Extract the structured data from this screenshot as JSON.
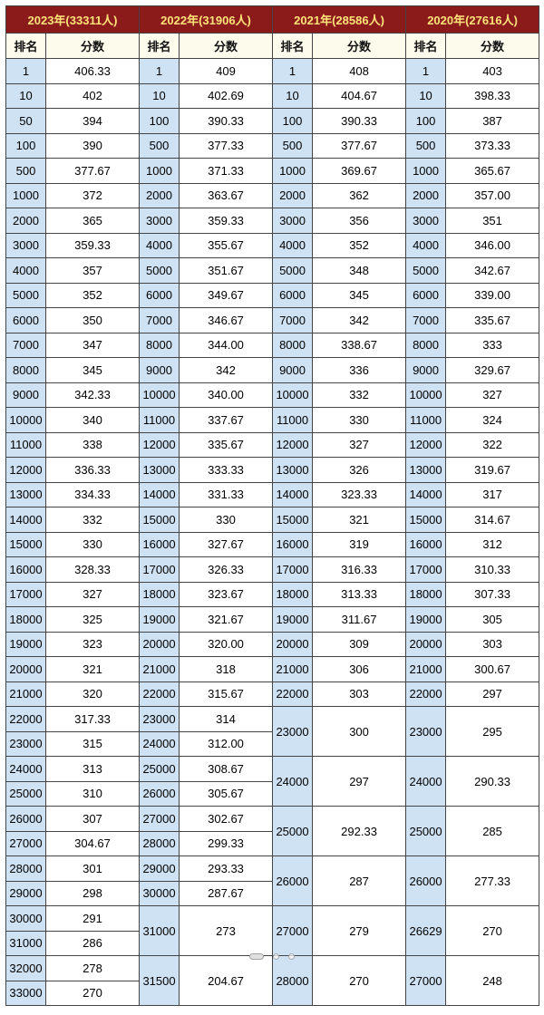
{
  "table": {
    "header_bg": "#8b1a1a",
    "header_fg": "#ffe37a",
    "subhead_bg": "#fdfbec",
    "rank_bg": "#cfe2f3",
    "score_bg": "#ffffff",
    "border_color": "#444444",
    "font_size_header": 13,
    "font_size_cell": 13,
    "labels": {
      "rank": "排名",
      "score": "分数"
    },
    "years": [
      {
        "title": "2023年(33311人)"
      },
      {
        "title": "2022年(31906人)"
      },
      {
        "title": "2021年(28586人)"
      },
      {
        "title": "2020年(27616人)"
      }
    ],
    "rows": [
      [
        {
          "r": "1",
          "s": "406.33"
        },
        {
          "r": "1",
          "s": "409"
        },
        {
          "r": "1",
          "s": "408"
        },
        {
          "r": "1",
          "s": "403"
        }
      ],
      [
        {
          "r": "10",
          "s": "402"
        },
        {
          "r": "10",
          "s": "402.69"
        },
        {
          "r": "10",
          "s": "404.67"
        },
        {
          "r": "10",
          "s": "398.33"
        }
      ],
      [
        {
          "r": "50",
          "s": "394"
        },
        {
          "r": "100",
          "s": "390.33"
        },
        {
          "r": "100",
          "s": "390.33"
        },
        {
          "r": "100",
          "s": "387"
        }
      ],
      [
        {
          "r": "100",
          "s": "390"
        },
        {
          "r": "500",
          "s": "377.33"
        },
        {
          "r": "500",
          "s": "377.67"
        },
        {
          "r": "500",
          "s": "373.33"
        }
      ],
      [
        {
          "r": "500",
          "s": "377.67"
        },
        {
          "r": "1000",
          "s": "371.33"
        },
        {
          "r": "1000",
          "s": "369.67"
        },
        {
          "r": "1000",
          "s": "365.67"
        }
      ],
      [
        {
          "r": "1000",
          "s": "372"
        },
        {
          "r": "2000",
          "s": "363.67"
        },
        {
          "r": "2000",
          "s": "362"
        },
        {
          "r": "2000",
          "s": "357.00"
        }
      ],
      [
        {
          "r": "2000",
          "s": "365"
        },
        {
          "r": "3000",
          "s": "359.33"
        },
        {
          "r": "3000",
          "s": "356"
        },
        {
          "r": "3000",
          "s": "351"
        }
      ],
      [
        {
          "r": "3000",
          "s": "359.33"
        },
        {
          "r": "4000",
          "s": "355.67"
        },
        {
          "r": "4000",
          "s": "352"
        },
        {
          "r": "4000",
          "s": "346.00"
        }
      ],
      [
        {
          "r": "4000",
          "s": "357"
        },
        {
          "r": "5000",
          "s": "351.67"
        },
        {
          "r": "5000",
          "s": "348"
        },
        {
          "r": "5000",
          "s": "342.67"
        }
      ],
      [
        {
          "r": "5000",
          "s": "352"
        },
        {
          "r": "6000",
          "s": "349.67"
        },
        {
          "r": "6000",
          "s": "345"
        },
        {
          "r": "6000",
          "s": "339.00"
        }
      ],
      [
        {
          "r": "6000",
          "s": "350"
        },
        {
          "r": "7000",
          "s": "346.67"
        },
        {
          "r": "7000",
          "s": "342"
        },
        {
          "r": "7000",
          "s": "335.67"
        }
      ],
      [
        {
          "r": "7000",
          "s": "347"
        },
        {
          "r": "8000",
          "s": "344.00"
        },
        {
          "r": "8000",
          "s": "338.67"
        },
        {
          "r": "8000",
          "s": "333"
        }
      ],
      [
        {
          "r": "8000",
          "s": "345"
        },
        {
          "r": "9000",
          "s": "342"
        },
        {
          "r": "9000",
          "s": "336"
        },
        {
          "r": "9000",
          "s": "329.67"
        }
      ],
      [
        {
          "r": "9000",
          "s": "342.33"
        },
        {
          "r": "10000",
          "s": "340.00"
        },
        {
          "r": "10000",
          "s": "332"
        },
        {
          "r": "10000",
          "s": "327"
        }
      ],
      [
        {
          "r": "10000",
          "s": "340"
        },
        {
          "r": "11000",
          "s": "337.67"
        },
        {
          "r": "11000",
          "s": "330"
        },
        {
          "r": "11000",
          "s": "324"
        }
      ],
      [
        {
          "r": "11000",
          "s": "338"
        },
        {
          "r": "12000",
          "s": "335.67"
        },
        {
          "r": "12000",
          "s": "327"
        },
        {
          "r": "12000",
          "s": "322"
        }
      ],
      [
        {
          "r": "12000",
          "s": "336.33"
        },
        {
          "r": "13000",
          "s": "333.33"
        },
        {
          "r": "13000",
          "s": "326"
        },
        {
          "r": "13000",
          "s": "319.67"
        }
      ],
      [
        {
          "r": "13000",
          "s": "334.33"
        },
        {
          "r": "14000",
          "s": "331.33"
        },
        {
          "r": "14000",
          "s": "323.33"
        },
        {
          "r": "14000",
          "s": "317"
        }
      ],
      [
        {
          "r": "14000",
          "s": "332"
        },
        {
          "r": "15000",
          "s": "330"
        },
        {
          "r": "15000",
          "s": "321"
        },
        {
          "r": "15000",
          "s": "314.67"
        }
      ],
      [
        {
          "r": "15000",
          "s": "330"
        },
        {
          "r": "16000",
          "s": "327.67"
        },
        {
          "r": "16000",
          "s": "319"
        },
        {
          "r": "16000",
          "s": "312"
        }
      ],
      [
        {
          "r": "16000",
          "s": "328.33"
        },
        {
          "r": "17000",
          "s": "326.33"
        },
        {
          "r": "17000",
          "s": "316.33"
        },
        {
          "r": "17000",
          "s": "310.33"
        }
      ],
      [
        {
          "r": "17000",
          "s": "327"
        },
        {
          "r": "18000",
          "s": "323.67"
        },
        {
          "r": "18000",
          "s": "313.33"
        },
        {
          "r": "18000",
          "s": "307.33"
        }
      ],
      [
        {
          "r": "18000",
          "s": "325"
        },
        {
          "r": "19000",
          "s": "321.67"
        },
        {
          "r": "19000",
          "s": "311.67"
        },
        {
          "r": "19000",
          "s": "305"
        }
      ],
      [
        {
          "r": "19000",
          "s": "323"
        },
        {
          "r": "20000",
          "s": "320.00"
        },
        {
          "r": "20000",
          "s": "309"
        },
        {
          "r": "20000",
          "s": "303"
        }
      ],
      [
        {
          "r": "20000",
          "s": "321"
        },
        {
          "r": "21000",
          "s": "318"
        },
        {
          "r": "21000",
          "s": "306"
        },
        {
          "r": "21000",
          "s": "300.67"
        }
      ],
      [
        {
          "r": "21000",
          "s": "320"
        },
        {
          "r": "22000",
          "s": "315.67"
        },
        {
          "r": "22000",
          "s": "303"
        },
        {
          "r": "22000",
          "s": "297"
        }
      ],
      [
        {
          "r": "22000",
          "s": "317.33"
        },
        {
          "r": "23000",
          "s": "314"
        },
        {
          "r": "23000",
          "s": "300",
          "rs": 2
        },
        {
          "r": "23000",
          "s": "295",
          "rs": 2
        }
      ],
      [
        {
          "r": "23000",
          "s": "315"
        },
        {
          "r": "24000",
          "s": "312.00"
        },
        null,
        null
      ],
      [
        {
          "r": "24000",
          "s": "313"
        },
        {
          "r": "25000",
          "s": "308.67"
        },
        {
          "r": "24000",
          "s": "297",
          "rs": 2
        },
        {
          "r": "24000",
          "s": "290.33",
          "rs": 2
        }
      ],
      [
        {
          "r": "25000",
          "s": "310"
        },
        {
          "r": "26000",
          "s": "305.67"
        },
        null,
        null
      ],
      [
        {
          "r": "26000",
          "s": "307"
        },
        {
          "r": "27000",
          "s": "302.67"
        },
        {
          "r": "25000",
          "s": "292.33",
          "rs": 2
        },
        {
          "r": "25000",
          "s": "285",
          "rs": 2
        }
      ],
      [
        {
          "r": "27000",
          "s": "304.67"
        },
        {
          "r": "28000",
          "s": "299.33"
        },
        null,
        null
      ],
      [
        {
          "r": "28000",
          "s": "301"
        },
        {
          "r": "29000",
          "s": "293.33"
        },
        {
          "r": "26000",
          "s": "287",
          "rs": 2
        },
        {
          "r": "26000",
          "s": "277.33",
          "rs": 2
        }
      ],
      [
        {
          "r": "29000",
          "s": "298"
        },
        {
          "r": "30000",
          "s": "287.67"
        },
        null,
        null
      ],
      [
        {
          "r": "30000",
          "s": "291"
        },
        {
          "r": "31000",
          "s": "273",
          "rs": 2
        },
        {
          "r": "27000",
          "s": "279",
          "rs": 2
        },
        {
          "r": "26629",
          "s": "270",
          "rs": 2
        }
      ],
      [
        {
          "r": "31000",
          "s": "286"
        },
        null,
        null,
        null
      ],
      [
        {
          "r": "32000",
          "s": "278"
        },
        {
          "r": "31500",
          "s": "204.67",
          "rs": 2
        },
        {
          "r": "28000",
          "s": "270",
          "rs": 2
        },
        {
          "r": "27000",
          "s": "248",
          "rs": 2
        }
      ],
      [
        {
          "r": "33000",
          "s": "270"
        },
        null,
        null,
        null
      ]
    ]
  },
  "carousel": {
    "count": 3,
    "active": 0
  }
}
